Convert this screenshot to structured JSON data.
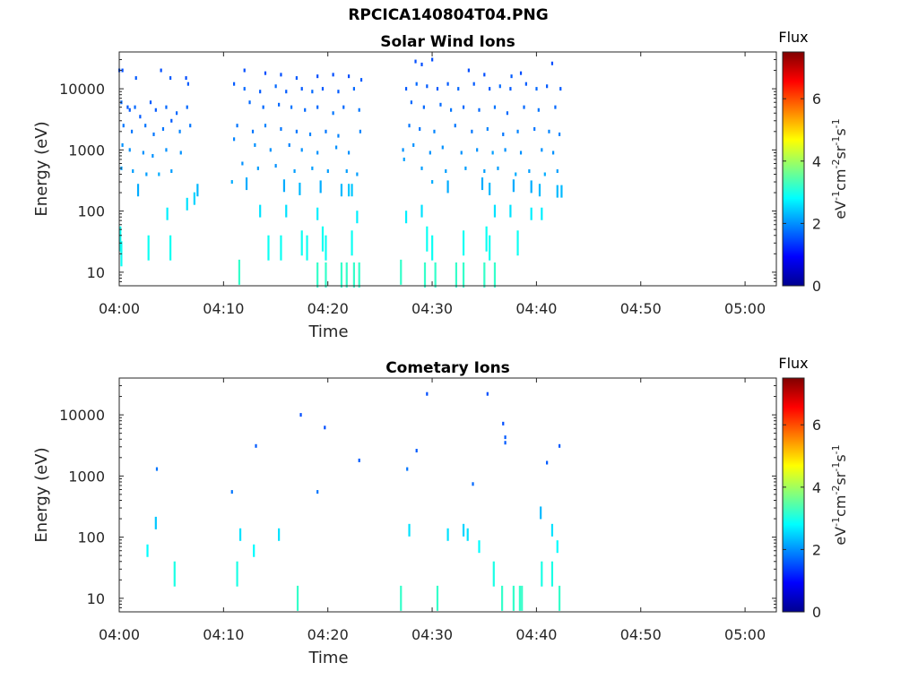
{
  "figure_title": "RPCICA140804T04.PNG",
  "colorbar": {
    "title": "Flux",
    "unit_label": "eV-1cm-2sr-1s-1",
    "ticks": [
      "0",
      "2",
      "4",
      "6"
    ],
    "range": [
      0,
      7.5
    ],
    "colormap": "jet"
  },
  "chart_data": [
    {
      "type": "heatmap",
      "title": "Solar Wind Ions",
      "xlabel": "Time",
      "ylabel": "Energy (eV)",
      "xticks": [
        "04:00",
        "04:10",
        "04:20",
        "04:30",
        "04:40",
        "04:50",
        "05:00"
      ],
      "xlim_minutes": [
        0,
        63
      ],
      "yscale": "log",
      "ylim": [
        6,
        40000
      ],
      "yticks": [
        "10",
        "100",
        "1000",
        "10000"
      ],
      "cells": [
        [
          0.0,
          20000,
          1.5
        ],
        [
          0.3,
          20000,
          1.5
        ],
        [
          1.6,
          15000,
          1.6
        ],
        [
          4.0,
          20000,
          1.5
        ],
        [
          4.9,
          15000,
          1.6
        ],
        [
          6.4,
          15000,
          1.5
        ],
        [
          6.6,
          12000,
          1.6
        ],
        [
          0.2,
          6000,
          1.7
        ],
        [
          0.8,
          5000,
          1.6
        ],
        [
          1.0,
          4500,
          1.6
        ],
        [
          1.5,
          5000,
          1.7
        ],
        [
          2.0,
          3500,
          1.6
        ],
        [
          3.0,
          6000,
          1.6
        ],
        [
          3.5,
          4500,
          1.6
        ],
        [
          4.5,
          5000,
          1.7
        ],
        [
          5.0,
          3000,
          1.6
        ],
        [
          5.5,
          4000,
          1.7
        ],
        [
          6.5,
          5000,
          1.7
        ],
        [
          0.4,
          2500,
          1.8
        ],
        [
          1.2,
          2000,
          1.8
        ],
        [
          2.5,
          2500,
          1.8
        ],
        [
          3.3,
          1800,
          1.8
        ],
        [
          4.2,
          2200,
          1.8
        ],
        [
          5.8,
          2000,
          1.9
        ],
        [
          6.8,
          2500,
          1.8
        ],
        [
          0.3,
          1200,
          2.0
        ],
        [
          1.0,
          1000,
          2.0
        ],
        [
          2.3,
          900,
          2.0
        ],
        [
          3.2,
          800,
          2.0
        ],
        [
          4.5,
          1000,
          2.0
        ],
        [
          5.9,
          900,
          2.0
        ],
        [
          0.2,
          500,
          2.1
        ],
        [
          1.3,
          450,
          2.1
        ],
        [
          2.6,
          400,
          2.1
        ],
        [
          3.8,
          400,
          2.2
        ],
        [
          5.0,
          450,
          2.1
        ],
        [
          7.5,
          220,
          2.3
        ],
        [
          1.8,
          220,
          2.2
        ],
        [
          6.5,
          130,
          2.6
        ],
        [
          7.2,
          160,
          2.5
        ],
        [
          4.6,
          90,
          2.7
        ],
        [
          0.1,
          35,
          2.9
        ],
        [
          0.2,
          20,
          2.9
        ],
        [
          2.8,
          25,
          2.9
        ],
        [
          4.9,
          25,
          2.9
        ],
        [
          12.0,
          20000,
          1.5
        ],
        [
          14.0,
          18000,
          1.5
        ],
        [
          15.5,
          17000,
          1.5
        ],
        [
          17.0,
          15000,
          1.6
        ],
        [
          19.0,
          16000,
          1.5
        ],
        [
          20.5,
          17000,
          1.5
        ],
        [
          22.0,
          16000,
          1.5
        ],
        [
          23.2,
          14000,
          1.6
        ],
        [
          11.0,
          12000,
          1.6
        ],
        [
          12.0,
          10000,
          1.7
        ],
        [
          13.5,
          9000,
          1.6
        ],
        [
          15.0,
          11000,
          1.7
        ],
        [
          16.0,
          9000,
          1.6
        ],
        [
          17.5,
          10000,
          1.6
        ],
        [
          18.5,
          9000,
          1.7
        ],
        [
          19.5,
          10000,
          1.6
        ],
        [
          21.0,
          9000,
          1.6
        ],
        [
          22.5,
          10000,
          1.7
        ],
        [
          12.5,
          6000,
          1.7
        ],
        [
          13.8,
          5000,
          1.7
        ],
        [
          15.3,
          5500,
          1.7
        ],
        [
          16.5,
          5000,
          1.8
        ],
        [
          17.8,
          4500,
          1.7
        ],
        [
          19.0,
          5000,
          1.7
        ],
        [
          20.5,
          4000,
          1.8
        ],
        [
          21.5,
          5000,
          1.7
        ],
        [
          23.0,
          4500,
          1.8
        ],
        [
          11.3,
          2500,
          1.8
        ],
        [
          12.8,
          2000,
          1.8
        ],
        [
          14.0,
          2500,
          1.9
        ],
        [
          15.5,
          2200,
          1.8
        ],
        [
          17.0,
          2000,
          1.8
        ],
        [
          18.3,
          1800,
          1.9
        ],
        [
          19.8,
          2000,
          1.8
        ],
        [
          21.0,
          1700,
          1.9
        ],
        [
          23.1,
          2000,
          1.9
        ],
        [
          11.0,
          1500,
          1.9
        ],
        [
          13.0,
          1200,
          2.0
        ],
        [
          14.5,
          1000,
          2.0
        ],
        [
          16.3,
          1200,
          1.9
        ],
        [
          17.5,
          1000,
          2.0
        ],
        [
          19.0,
          900,
          2.0
        ],
        [
          20.8,
          1100,
          2.0
        ],
        [
          22.0,
          900,
          2.0
        ],
        [
          11.8,
          600,
          2.0
        ],
        [
          13.3,
          500,
          2.1
        ],
        [
          15.0,
          550,
          2.0
        ],
        [
          16.8,
          450,
          2.1
        ],
        [
          18.5,
          500,
          2.1
        ],
        [
          20.0,
          450,
          2.1
        ],
        [
          21.8,
          450,
          2.1
        ],
        [
          22.8,
          400,
          2.1
        ],
        [
          10.8,
          300,
          2.2
        ],
        [
          12.2,
          280,
          2.2
        ],
        [
          15.8,
          260,
          2.2
        ],
        [
          17.3,
          230,
          2.3
        ],
        [
          19.3,
          250,
          2.2
        ],
        [
          21.3,
          220,
          2.3
        ],
        [
          22.0,
          220,
          2.4
        ],
        [
          22.3,
          220,
          2.4
        ],
        [
          13.5,
          100,
          2.6
        ],
        [
          16.0,
          100,
          2.6
        ],
        [
          19.0,
          90,
          2.7
        ],
        [
          22.8,
          80,
          2.7
        ],
        [
          14.3,
          25,
          2.9
        ],
        [
          15.5,
          25,
          2.9
        ],
        [
          17.5,
          30,
          2.9
        ],
        [
          18.0,
          25,
          2.9
        ],
        [
          19.5,
          35,
          2.9
        ],
        [
          19.8,
          25,
          2.9
        ],
        [
          22.3,
          30,
          2.9
        ],
        [
          11.5,
          10,
          3.2
        ],
        [
          19.0,
          9,
          3.2
        ],
        [
          19.8,
          9,
          3.2
        ],
        [
          21.3,
          9,
          3.2
        ],
        [
          21.8,
          9,
          3.2
        ],
        [
          22.5,
          9,
          3.2
        ],
        [
          23.0,
          9,
          3.2
        ],
        [
          28.4,
          28000,
          1.5
        ],
        [
          29.0,
          25000,
          1.5
        ],
        [
          30.0,
          30000,
          1.5
        ],
        [
          33.5,
          20000,
          1.5
        ],
        [
          35.0,
          17000,
          1.5
        ],
        [
          37.6,
          16000,
          1.6
        ],
        [
          38.5,
          18000,
          1.5
        ],
        [
          41.5,
          26000,
          1.5
        ],
        [
          27.5,
          10000,
          1.6
        ],
        [
          28.5,
          12000,
          1.7
        ],
        [
          29.5,
          11000,
          1.6
        ],
        [
          30.5,
          10000,
          1.6
        ],
        [
          31.5,
          12000,
          1.6
        ],
        [
          32.5,
          10000,
          1.7
        ],
        [
          34.0,
          12000,
          1.6
        ],
        [
          35.5,
          10000,
          1.6
        ],
        [
          36.5,
          11000,
          1.7
        ],
        [
          37.5,
          10000,
          1.6
        ],
        [
          39.0,
          12000,
          1.6
        ],
        [
          40.0,
          10000,
          1.7
        ],
        [
          41.0,
          11000,
          1.6
        ],
        [
          42.3,
          10000,
          1.6
        ],
        [
          28.0,
          6000,
          1.7
        ],
        [
          29.2,
          5000,
          1.7
        ],
        [
          30.8,
          5500,
          1.7
        ],
        [
          31.8,
          4500,
          1.8
        ],
        [
          33.0,
          5000,
          1.7
        ],
        [
          34.5,
          4500,
          1.7
        ],
        [
          36.0,
          5000,
          1.8
        ],
        [
          37.2,
          4000,
          1.7
        ],
        [
          38.8,
          5000,
          1.7
        ],
        [
          40.2,
          4500,
          1.8
        ],
        [
          41.8,
          5000,
          1.7
        ],
        [
          27.8,
          2500,
          1.8
        ],
        [
          28.8,
          2200,
          1.8
        ],
        [
          30.2,
          2000,
          1.9
        ],
        [
          32.2,
          2500,
          1.8
        ],
        [
          33.8,
          2000,
          1.8
        ],
        [
          35.3,
          2200,
          1.9
        ],
        [
          36.8,
          1800,
          1.8
        ],
        [
          38.2,
          2000,
          1.9
        ],
        [
          39.8,
          2200,
          1.8
        ],
        [
          41.2,
          2000,
          1.9
        ],
        [
          42.2,
          1800,
          1.9
        ],
        [
          27.2,
          1000,
          2.0
        ],
        [
          28.2,
          1200,
          2.0
        ],
        [
          29.8,
          900,
          2.0
        ],
        [
          31.0,
          1100,
          2.0
        ],
        [
          32.8,
          900,
          2.0
        ],
        [
          34.3,
          1000,
          2.0
        ],
        [
          35.8,
          900,
          2.1
        ],
        [
          37.0,
          1000,
          2.0
        ],
        [
          38.5,
          900,
          2.0
        ],
        [
          40.5,
          1000,
          2.0
        ],
        [
          41.6,
          900,
          2.0
        ],
        [
          27.3,
          700,
          2.1
        ],
        [
          29.0,
          500,
          2.1
        ],
        [
          31.3,
          450,
          2.1
        ],
        [
          33.2,
          500,
          2.1
        ],
        [
          35.0,
          450,
          2.1
        ],
        [
          36.3,
          500,
          2.1
        ],
        [
          38.0,
          400,
          2.2
        ],
        [
          39.3,
          450,
          2.1
        ],
        [
          40.8,
          400,
          2.2
        ],
        [
          42.0,
          450,
          2.1
        ],
        [
          30.0,
          300,
          2.2
        ],
        [
          31.5,
          250,
          2.2
        ],
        [
          34.8,
          280,
          2.2
        ],
        [
          35.5,
          230,
          2.3
        ],
        [
          37.8,
          260,
          2.2
        ],
        [
          39.5,
          250,
          2.2
        ],
        [
          40.3,
          220,
          2.3
        ],
        [
          42.0,
          210,
          2.3
        ],
        [
          42.4,
          210,
          2.3
        ],
        [
          29.0,
          100,
          2.6
        ],
        [
          36.0,
          100,
          2.6
        ],
        [
          37.5,
          100,
          2.6
        ],
        [
          39.5,
          90,
          2.7
        ],
        [
          40.5,
          90,
          2.7
        ],
        [
          27.5,
          80,
          2.7
        ],
        [
          29.5,
          35,
          2.9
        ],
        [
          30.0,
          25,
          2.9
        ],
        [
          33.0,
          30,
          2.9
        ],
        [
          35.2,
          35,
          2.9
        ],
        [
          35.5,
          25,
          2.9
        ],
        [
          38.2,
          30,
          2.9
        ],
        [
          27.0,
          10,
          3.2
        ],
        [
          29.3,
          9,
          3.2
        ],
        [
          30.3,
          9,
          3.2
        ],
        [
          32.3,
          9,
          3.2
        ],
        [
          33.0,
          9,
          3.2
        ],
        [
          35.0,
          9,
          3.2
        ],
        [
          36.0,
          9,
          3.2
        ]
      ]
    },
    {
      "type": "heatmap",
      "title": "Cometary Ions",
      "xlabel": "Time",
      "ylabel": "Energy (eV)",
      "xticks": [
        "04:00",
        "04:10",
        "04:20",
        "04:30",
        "04:40",
        "04:50",
        "05:00"
      ],
      "xlim_minutes": [
        0,
        63
      ],
      "yscale": "log",
      "ylim": [
        6,
        40000
      ],
      "yticks": [
        "10",
        "100",
        "1000",
        "10000"
      ],
      "cells": [
        [
          3.6,
          1300,
          1.8
        ],
        [
          3.5,
          170,
          2.4
        ],
        [
          2.7,
          60,
          2.8
        ],
        [
          5.3,
          25,
          3.0
        ],
        [
          10.8,
          550,
          1.8
        ],
        [
          11.6,
          110,
          2.6
        ],
        [
          11.3,
          25,
          3.0
        ],
        [
          13.1,
          3100,
          1.6
        ],
        [
          12.9,
          60,
          2.8
        ],
        [
          15.3,
          110,
          2.6
        ],
        [
          17.4,
          10000,
          1.5
        ],
        [
          17.1,
          10,
          3.2
        ],
        [
          19.0,
          550,
          1.8
        ],
        [
          19.7,
          6200,
          1.5
        ],
        [
          23.0,
          1800,
          1.6
        ],
        [
          29.5,
          22000,
          1.5
        ],
        [
          28.5,
          2600,
          1.6
        ],
        [
          27.6,
          1300,
          1.8
        ],
        [
          27.8,
          130,
          2.6
        ],
        [
          27.0,
          10,
          3.2
        ],
        [
          30.5,
          10,
          3.2
        ],
        [
          31.5,
          110,
          2.6
        ],
        [
          33.0,
          130,
          2.5
        ],
        [
          33.4,
          110,
          2.6
        ],
        [
          33.9,
          740,
          1.7
        ],
        [
          34.5,
          70,
          2.8
        ],
        [
          35.3,
          22000,
          1.5
        ],
        [
          35.9,
          25,
          3.0
        ],
        [
          36.8,
          7200,
          1.5
        ],
        [
          37.0,
          4300,
          1.6
        ],
        [
          37.0,
          3500,
          1.6
        ],
        [
          36.7,
          10,
          3.2
        ],
        [
          37.8,
          10,
          3.2
        ],
        [
          38.4,
          10,
          3.2
        ],
        [
          38.6,
          10,
          3.2
        ],
        [
          40.4,
          250,
          2.3
        ],
        [
          40.5,
          25,
          3.0
        ],
        [
          41.0,
          1650,
          1.6
        ],
        [
          41.5,
          130,
          2.6
        ],
        [
          41.5,
          25,
          3.0
        ],
        [
          42.2,
          3100,
          1.6
        ],
        [
          42.0,
          70,
          2.8
        ],
        [
          42.2,
          10,
          3.2
        ]
      ]
    }
  ]
}
